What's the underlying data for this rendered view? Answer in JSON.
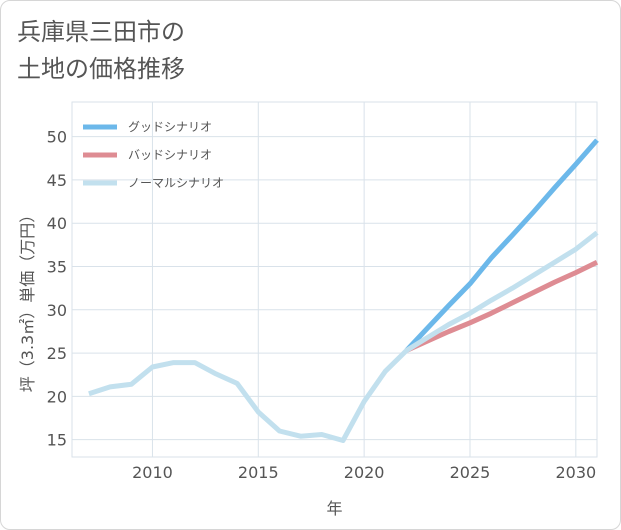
{
  "title": {
    "line1": "兵庫県三田市の",
    "line2": "土地の価格推移"
  },
  "chart_data": {
    "type": "line",
    "xlabel": "年",
    "ylabel": "坪（3.3㎡）単価（万円）",
    "xlim": [
      2006.2,
      2031
    ],
    "ylim": [
      13,
      54
    ],
    "x_ticks": [
      2010,
      2015,
      2020,
      2025,
      2030
    ],
    "y_ticks": [
      15,
      20,
      25,
      30,
      35,
      40,
      45,
      50
    ],
    "grid": true,
    "legend_position": "top-left",
    "series": [
      {
        "name": "グッドシナリオ",
        "color": "#6cb8ea",
        "x": [
          2022,
          2023,
          2024,
          2025,
          2026,
          2027,
          2028,
          2029,
          2030,
          2031
        ],
        "y": [
          25.3,
          27.9,
          30.5,
          33.0,
          36.0,
          38.6,
          41.3,
          44.1,
          46.8,
          49.6
        ]
      },
      {
        "name": "バッドシナリオ",
        "color": "#de8c93",
        "x": [
          2022,
          2023,
          2024,
          2025,
          2026,
          2027,
          2028,
          2029,
          2030,
          2031
        ],
        "y": [
          25.3,
          26.4,
          27.5,
          28.5,
          29.6,
          30.8,
          32.0,
          33.2,
          34.3,
          35.5
        ]
      },
      {
        "name": "ノーマルシナリオ",
        "color": "#c2e0ee",
        "x": [
          2007,
          2008,
          2009,
          2010,
          2011,
          2012,
          2013,
          2014,
          2015,
          2016,
          2017,
          2018,
          2019,
          2020,
          2021,
          2022,
          2023,
          2024,
          2025,
          2026,
          2027,
          2028,
          2029,
          2030,
          2031
        ],
        "y": [
          20.3,
          21.1,
          21.4,
          23.4,
          23.9,
          23.9,
          22.6,
          21.5,
          18.2,
          16.0,
          15.4,
          15.6,
          14.9,
          19.4,
          22.9,
          25.3,
          26.8,
          28.3,
          29.6,
          31.1,
          32.5,
          34.0,
          35.5,
          37.0,
          38.9
        ]
      }
    ]
  }
}
